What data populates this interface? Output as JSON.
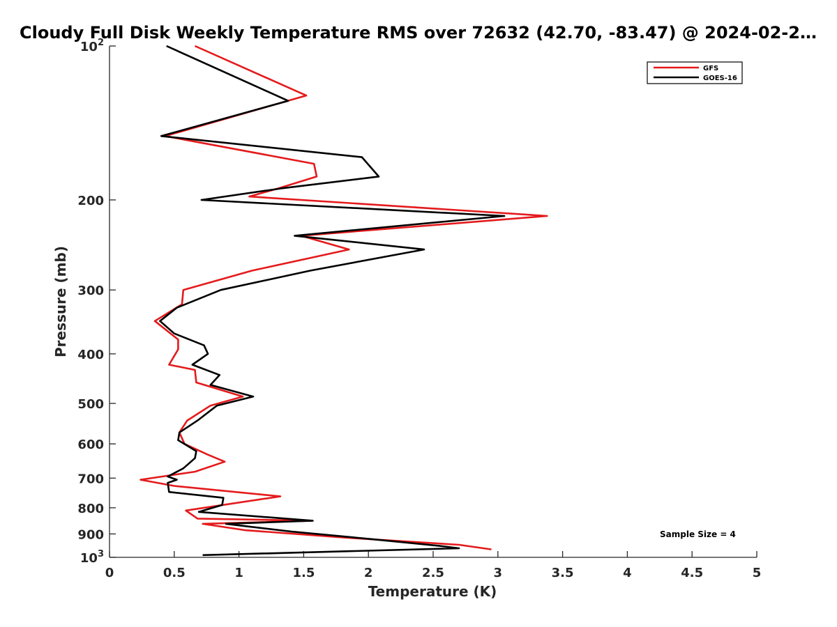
{
  "chart_data": {
    "type": "line",
    "title": "Cloudy Full Disk Weekly Temperature RMS over 72632 (42.70, -83.47) @ 2024-02-2…",
    "xlabel": "Temperature (K)",
    "ylabel": "Pressure (mb)",
    "xlim": [
      0,
      5
    ],
    "ylim": [
      100,
      1000
    ],
    "yscale": "log",
    "y_reversed": true,
    "grid": false,
    "legend_position": "top-right",
    "x_ticks": [
      "0",
      "0.5",
      "1",
      "1.5",
      "2",
      "2.5",
      "3",
      "3.5",
      "4",
      "4.5",
      "5"
    ],
    "x_tick_values": [
      0,
      0.5,
      1,
      1.5,
      2,
      2.5,
      3,
      3.5,
      4,
      4.5,
      5
    ],
    "y_ticks": [
      {
        "value": 100,
        "base": "10",
        "exp": "2"
      },
      {
        "value": 200,
        "label": "200"
      },
      {
        "value": 300,
        "label": "300"
      },
      {
        "value": 400,
        "label": "400"
      },
      {
        "value": 500,
        "label": "500"
      },
      {
        "value": 600,
        "label": "600"
      },
      {
        "value": 700,
        "label": "700"
      },
      {
        "value": 800,
        "label": "800"
      },
      {
        "value": 900,
        "label": "900"
      },
      {
        "value": 1000,
        "base": "10",
        "exp": "3"
      }
    ],
    "annotation": "Sample Size = 4",
    "series": [
      {
        "name": "GFS",
        "color": "#e41a1c",
        "points": [
          [
            0.66,
            100
          ],
          [
            1.52,
            125
          ],
          [
            0.43,
            150
          ],
          [
            1.58,
            170
          ],
          [
            1.6,
            180
          ],
          [
            1.3,
            190
          ],
          [
            1.08,
            197
          ],
          [
            3.38,
            215
          ],
          [
            1.48,
            235
          ],
          [
            1.85,
            250
          ],
          [
            1.1,
            275
          ],
          [
            0.57,
            300
          ],
          [
            0.56,
            320
          ],
          [
            0.35,
            345
          ],
          [
            0.53,
            375
          ],
          [
            0.53,
            392
          ],
          [
            0.46,
            420
          ],
          [
            0.66,
            430
          ],
          [
            0.67,
            455
          ],
          [
            1.03,
            485
          ],
          [
            0.78,
            505
          ],
          [
            0.6,
            540
          ],
          [
            0.54,
            570
          ],
          [
            0.58,
            600
          ],
          [
            0.76,
            630
          ],
          [
            0.89,
            650
          ],
          [
            0.66,
            680
          ],
          [
            0.24,
            705
          ],
          [
            0.5,
            725
          ],
          [
            1.32,
            760
          ],
          [
            0.59,
            810
          ],
          [
            0.68,
            840
          ],
          [
            1.57,
            848
          ],
          [
            0.72,
            860
          ],
          [
            1.05,
            885
          ],
          [
            1.82,
            915
          ],
          [
            2.7,
            945
          ],
          [
            2.95,
            965
          ]
        ]
      },
      {
        "name": "GOES-16",
        "color": "#000000",
        "points": [
          [
            0.44,
            100
          ],
          [
            1.38,
            128
          ],
          [
            0.4,
            150
          ],
          [
            1.95,
            165
          ],
          [
            2.08,
            180
          ],
          [
            1.32,
            190
          ],
          [
            0.71,
            200
          ],
          [
            3.05,
            215
          ],
          [
            1.43,
            235
          ],
          [
            2.43,
            250
          ],
          [
            1.55,
            275
          ],
          [
            0.86,
            300
          ],
          [
            0.52,
            325
          ],
          [
            0.39,
            345
          ],
          [
            0.5,
            365
          ],
          [
            0.73,
            385
          ],
          [
            0.76,
            400
          ],
          [
            0.64,
            420
          ],
          [
            0.85,
            440
          ],
          [
            0.78,
            460
          ],
          [
            1.11,
            485
          ],
          [
            0.83,
            505
          ],
          [
            0.68,
            540
          ],
          [
            0.54,
            570
          ],
          [
            0.53,
            590
          ],
          [
            0.67,
            620
          ],
          [
            0.66,
            640
          ],
          [
            0.57,
            670
          ],
          [
            0.45,
            695
          ],
          [
            0.52,
            705
          ],
          [
            0.45,
            715
          ],
          [
            0.46,
            745
          ],
          [
            0.88,
            765
          ],
          [
            0.87,
            790
          ],
          [
            0.69,
            815
          ],
          [
            1.57,
            848
          ],
          [
            0.9,
            860
          ],
          [
            1.4,
            890
          ],
          [
            2.0,
            920
          ],
          [
            2.55,
            950
          ],
          [
            2.7,
            960
          ],
          [
            0.72,
            990
          ]
        ]
      }
    ]
  }
}
